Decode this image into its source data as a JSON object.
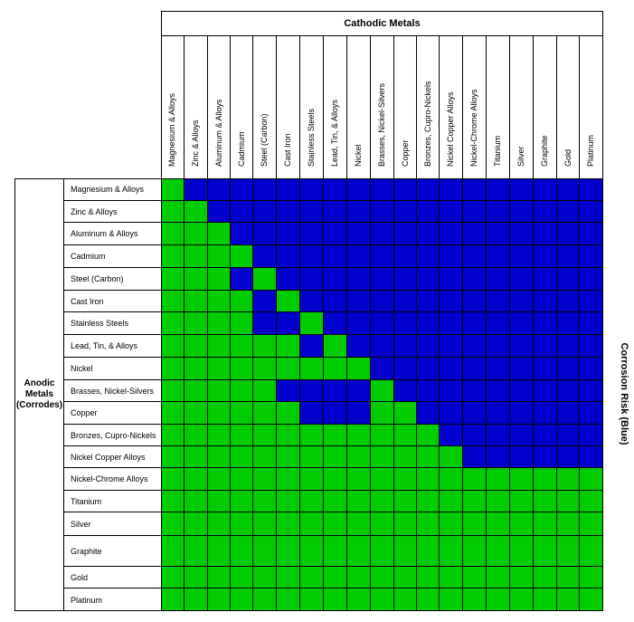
{
  "title": "Cathodic Metals",
  "anodic_label_lines": [
    "Anodic",
    "Metals",
    "(Corrodes)"
  ],
  "risk_label": "Corrosion Risk (Blue)",
  "colors": {
    "safe": "#00cc00",
    "risk": "#0000cc",
    "line": "#000000"
  },
  "cathodic_metals": [
    "Magnesium & Alloys",
    "Zinc & Alloys",
    "Aluminum & Alloys",
    "Cadmium",
    "Steel (Carbon)",
    "Cast Iron",
    "Stainless Steels",
    "Lead, Tin, & Alloys",
    "Nickel",
    "Brasses, Nickel-Silvers",
    "Copper",
    "Bronzes, Cupro-Nickels",
    "Nickel Copper Alloys",
    "Nickel-Chrome Alloys",
    "Titanium",
    "Silver",
    "Graphite",
    "Gold",
    "Platinum"
  ],
  "anodic_metals": [
    "Magnesium & Alloys",
    "Zinc & Alloys",
    "Aluminum & Alloys",
    "Cadmium",
    "Steel (Carbon)",
    "Cast Iron",
    "Stainless Steels",
    "Lead, Tin, & Alloys",
    "Nickel",
    "Brasses, Nickel-Silvers",
    "Copper",
    "Bronzes, Cupro-Nickels",
    "Nickel Copper Alloys",
    "Nickel-Chrome Alloys",
    "Titanium",
    "Silver",
    "Graphite",
    "Gold",
    "Platinum"
  ],
  "matrix": [
    "GBBBBBBBBBBBBBBBBBB",
    "GGBBBBBBBBBBBBBBBBB",
    "GGGBBBBBBBBBBBBBBBB",
    "GGGGBBBBBBBBBBBBBBB",
    "GGGBGBBBBBBBBBBBBBB",
    "GGGGBGBBBBBBBBBBBBB",
    "GGGGBBGBBBBBBBBBBBB",
    "GGGGGGBGBBBBBBBBBBB",
    "GGGGGGGGGBBBBBBBBBB",
    "GGGGGBBBBGBBBBBBBBB",
    "GGGGGGBBBGGBBBBBBBB",
    "GGGGGGGGGGGGBBBBBBB",
    "GGGGGGGGGGGGGBBBBBB",
    "GGGGGGGGGGGGGGGGGGG",
    "GGGGGGGGGGGGGGGGGGG",
    "GGGGGGGGGGGGGGGGGGG",
    "GGGGGGGGGGGGGGGGGGG",
    "GGGGGGGGGGGGGGGGGGG",
    "GGGGGGGGGGGGGGGGGGG"
  ]
}
